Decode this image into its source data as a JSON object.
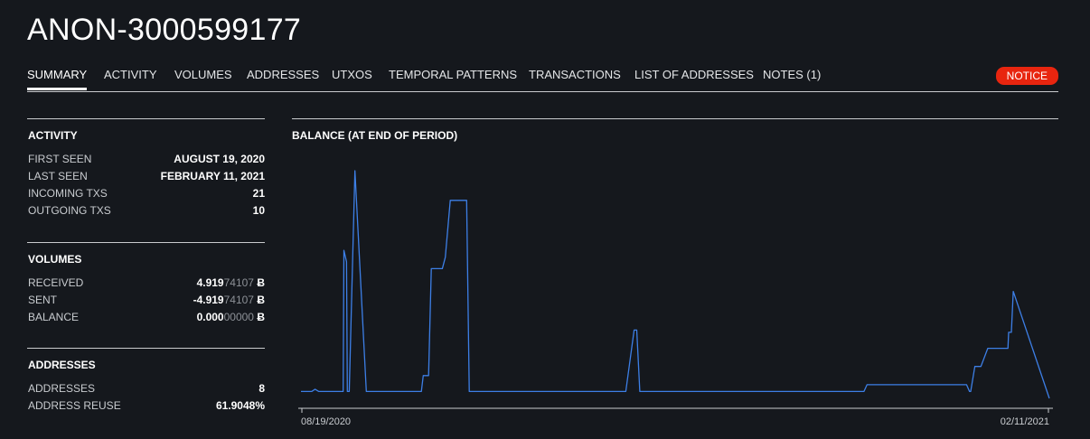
{
  "title": "ANON-3000599177",
  "tabs": [
    {
      "label": "SUMMARY",
      "active": true
    },
    {
      "label": "ACTIVITY"
    },
    {
      "label": "VOLUMES"
    },
    {
      "label": "ADDRESSES"
    },
    {
      "label": "UTXOS"
    },
    {
      "label": "TEMPORAL PATTERNS"
    },
    {
      "label": "TRANSACTIONS"
    },
    {
      "label": "LIST OF ADDRESSES"
    },
    {
      "label": "NOTES (1)"
    }
  ],
  "notice_label": "NOTICE",
  "activity": {
    "title": "ACTIVITY",
    "rows": [
      {
        "label": "FIRST SEEN",
        "value": "AUGUST 19, 2020"
      },
      {
        "label": "LAST SEEN",
        "value": "FEBRUARY 11, 2021"
      },
      {
        "label": "INCOMING TXS",
        "value": "21"
      },
      {
        "label": "OUTGOING TXS",
        "value": "10"
      }
    ]
  },
  "volumes": {
    "title": "VOLUMES",
    "rows": [
      {
        "label": "RECEIVED",
        "value_bold": "4.919",
        "value_dim": "74107",
        "unit": "Ƀ"
      },
      {
        "label": "SENT",
        "value_bold": "-4.919",
        "value_dim": "74107",
        "unit": "Ƀ"
      },
      {
        "label": "BALANCE",
        "value_bold": "0.000",
        "value_dim": "00000",
        "unit": "Ƀ"
      }
    ]
  },
  "addresses": {
    "title": "ADDRESSES",
    "rows": [
      {
        "label": "ADDRESSES",
        "value": "8"
      },
      {
        "label": "ADDRESS REUSE",
        "value": "61.9048%"
      }
    ]
  },
  "colors": {
    "line": "#3d7fe6",
    "notice": "#e8250f",
    "background": "#15181d"
  },
  "chart_data": {
    "type": "line",
    "title": "BALANCE (AT END OF PERIOD)",
    "x_tick_labels": [
      "08/19/2020",
      "02/11/2021"
    ],
    "x_range": [
      "2020-08-19",
      "2021-02-11"
    ],
    "y_axis_visible": false,
    "grid": false,
    "series": [
      {
        "x": [
          0,
          2.8,
          3.7,
          4.7,
          5.2,
          11.1,
          11.3,
          12,
          12.2,
          12.7,
          14.2,
          17.2,
          31.7,
          32.2,
          33.6,
          34.3,
          35.1,
          37.2,
          38,
          39.3,
          43.6,
          44.3,
          45.6,
          85.5,
          87.7,
          88.4,
          89.2,
          102.9,
          103.5,
          148.2,
          149,
          156.9,
          158.2,
          175.2,
          176,
          176.3,
          177.4,
          179,
          180.8,
          186.1,
          186.3,
          187,
          187.5,
          197
        ],
        "y": [
          0.03,
          0.03,
          0.04,
          0.03,
          0.03,
          0.03,
          0.65,
          0.6,
          0.03,
          0.03,
          1.0,
          0.03,
          0.03,
          0.1,
          0.1,
          0.57,
          0.57,
          0.57,
          0.62,
          0.87,
          0.87,
          0.03,
          0.03,
          0.03,
          0.3,
          0.3,
          0.03,
          0.03,
          0.03,
          0.03,
          0.06,
          0.06,
          0.06,
          0.06,
          0.03,
          0.03,
          0.14,
          0.14,
          0.22,
          0.22,
          0.29,
          0.29,
          0.47,
          0.0
        ]
      }
    ]
  }
}
